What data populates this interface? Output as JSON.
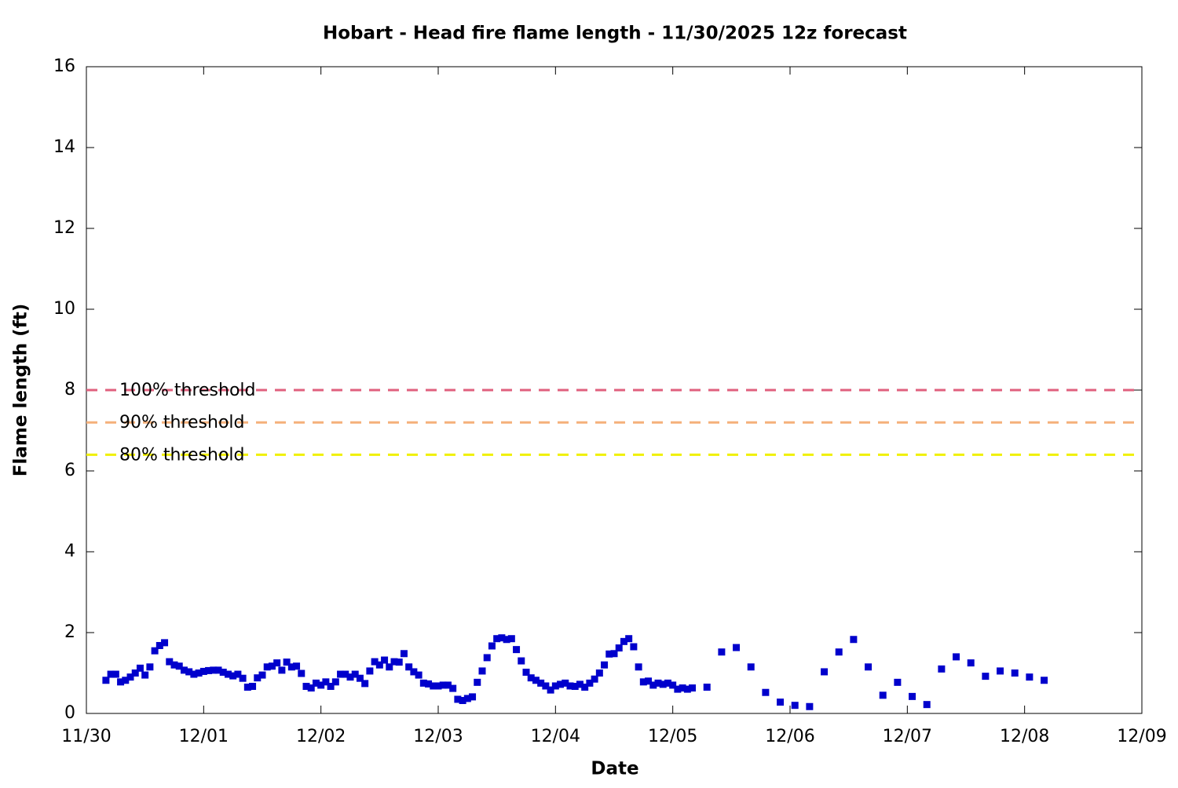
{
  "chart_data": {
    "type": "scatter",
    "title": "Hobart - Head fire flame length - 11/30/2025 12z forecast",
    "x_label": "Date",
    "y_label": "Flame length (ft)",
    "xlim": [
      0,
      216
    ],
    "xticks": [
      {
        "value": 0,
        "label": "11/30"
      },
      {
        "value": 24,
        "label": "12/01"
      },
      {
        "value": 48,
        "label": "12/02"
      },
      {
        "value": 72,
        "label": "12/03"
      },
      {
        "value": 96,
        "label": "12/04"
      },
      {
        "value": 120,
        "label": "12/05"
      },
      {
        "value": 144,
        "label": "12/06"
      },
      {
        "value": 168,
        "label": "12/07"
      },
      {
        "value": 192,
        "label": "12/08"
      },
      {
        "value": 216,
        "label": "12/09"
      }
    ],
    "ylim": [
      0,
      16
    ],
    "yticks": [
      0,
      2,
      4,
      6,
      8,
      10,
      12,
      14,
      16
    ],
    "thresholds": [
      {
        "name": "100% threshold",
        "value": 8,
        "color": "#e0607e"
      },
      {
        "name": "90% threshold",
        "value": 7.2,
        "color": "#f5b07a"
      },
      {
        "name": "80% threshold",
        "value": 6.4,
        "color": "#f0f000"
      }
    ],
    "series": [
      {
        "color": "#0000cc",
        "x": [
          4,
          5,
          6,
          7,
          8,
          9,
          10,
          11,
          12,
          13,
          14,
          15,
          16,
          17,
          18,
          19,
          20,
          21,
          22,
          23,
          24,
          25,
          26,
          27,
          28,
          29,
          30,
          31,
          32,
          33,
          34,
          35,
          36,
          37,
          38,
          39,
          40,
          41,
          42,
          43,
          44,
          45,
          46,
          47,
          48,
          49,
          50,
          51,
          52,
          53,
          54,
          55,
          56,
          57,
          58,
          59,
          60,
          61,
          62,
          63,
          64,
          65,
          66,
          67,
          68,
          69,
          70,
          71,
          72,
          73,
          74,
          75,
          76,
          77,
          78,
          79,
          80,
          81,
          82,
          83,
          84,
          85,
          86,
          87,
          88,
          89,
          90,
          91,
          92,
          93,
          94,
          95,
          96,
          97,
          98,
          99,
          100,
          101,
          102,
          103,
          104,
          105,
          106,
          107,
          108,
          109,
          110,
          111,
          112,
          113,
          114,
          115,
          116,
          117,
          118,
          119,
          120,
          121,
          122,
          123,
          124,
          127,
          130,
          133,
          136,
          139,
          142,
          145,
          148,
          151,
          154,
          157,
          160,
          163,
          166,
          169,
          172,
          175,
          178,
          181,
          184,
          187,
          190,
          193,
          196
        ],
        "values": [
          0.82,
          0.97,
          0.97,
          0.78,
          0.82,
          0.9,
          1.0,
          1.12,
          0.95,
          1.15,
          1.55,
          1.68,
          1.75,
          1.28,
          1.2,
          1.17,
          1.07,
          1.03,
          0.97,
          1.0,
          1.04,
          1.06,
          1.07,
          1.07,
          1.02,
          0.97,
          0.93,
          0.97,
          0.87,
          0.65,
          0.67,
          0.88,
          0.95,
          1.15,
          1.17,
          1.25,
          1.07,
          1.27,
          1.15,
          1.17,
          0.99,
          0.67,
          0.63,
          0.75,
          0.7,
          0.78,
          0.67,
          0.78,
          0.97,
          0.97,
          0.9,
          0.97,
          0.87,
          0.74,
          1.05,
          1.28,
          1.2,
          1.32,
          1.15,
          1.28,
          1.27,
          1.48,
          1.15,
          1.03,
          0.95,
          0.75,
          0.73,
          0.68,
          0.68,
          0.7,
          0.7,
          0.62,
          0.35,
          0.32,
          0.37,
          0.41,
          0.77,
          1.05,
          1.38,
          1.67,
          1.85,
          1.87,
          1.83,
          1.85,
          1.58,
          1.3,
          1.02,
          0.88,
          0.82,
          0.75,
          0.68,
          0.58,
          0.68,
          0.72,
          0.75,
          0.68,
          0.67,
          0.72,
          0.65,
          0.75,
          0.85,
          1.0,
          1.2,
          1.47,
          1.48,
          1.62,
          1.78,
          1.85,
          1.65,
          1.15,
          0.78,
          0.8,
          0.7,
          0.75,
          0.72,
          0.75,
          0.7,
          0.6,
          0.63,
          0.6,
          0.63,
          0.65,
          1.52,
          1.63,
          1.15,
          0.52,
          0.28,
          0.2,
          0.17,
          1.03,
          1.52,
          1.83,
          1.15,
          0.45,
          0.77,
          0.42,
          0.22,
          1.1,
          1.4,
          1.25,
          0.92,
          1.05,
          1.0,
          0.9,
          0.82
        ]
      }
    ]
  }
}
